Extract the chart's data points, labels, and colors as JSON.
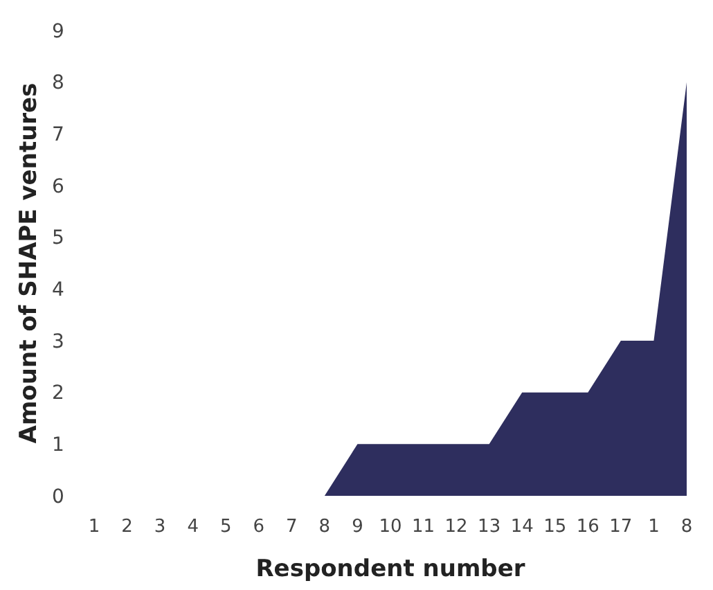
{
  "chart_data": {
    "type": "area",
    "xlabel": "Respondent number",
    "ylabel": "Amount of SHAPE ventures",
    "categories": [
      "1",
      "2",
      "3",
      "4",
      "5",
      "6",
      "7",
      "8",
      "9",
      "10",
      "11",
      "12",
      "13",
      "14",
      "15",
      "16",
      "17",
      "1",
      "8"
    ],
    "series": [
      {
        "color": "#2e2e5e",
        "values": [
          0,
          0,
          0,
          0,
          0,
          0,
          0,
          0,
          1,
          1,
          1,
          1,
          1,
          2,
          2,
          2,
          3,
          3,
          8
        ]
      }
    ],
    "ylim": [
      0,
      9
    ],
    "yticks": [
      0,
      1,
      2,
      3,
      4,
      5,
      6,
      7,
      8,
      9
    ],
    "grid": false
  }
}
